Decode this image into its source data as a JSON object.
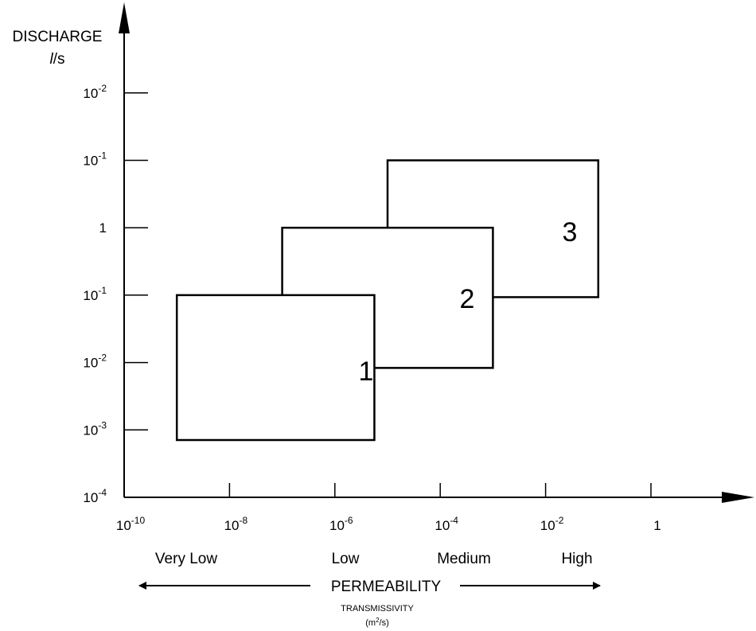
{
  "y_axis": {
    "title": "DISCHARGE",
    "unit_l": "l",
    "unit_rest": "/s",
    "ticks": [
      {
        "base": "10",
        "exp": "-4"
      },
      {
        "base": "10",
        "exp": "-3"
      },
      {
        "base": "10",
        "exp": "-2"
      },
      {
        "base": "10",
        "exp": "-1"
      },
      {
        "base": "1",
        "exp": ""
      },
      {
        "base": "10",
        "exp": "-1"
      },
      {
        "base": "10",
        "exp": "-2"
      }
    ]
  },
  "x_axis": {
    "ticks": [
      {
        "base": "10",
        "exp": "-10"
      },
      {
        "base": "10",
        "exp": "-8"
      },
      {
        "base": "10",
        "exp": "-6"
      },
      {
        "base": "10",
        "exp": "-4"
      },
      {
        "base": "10",
        "exp": "-2"
      },
      {
        "base": "1",
        "exp": ""
      }
    ],
    "permeability_classes": [
      "Very Low",
      "Low",
      "Medium",
      "High"
    ],
    "title": "PERMEABILITY",
    "subtitle": "TRANSMISSIVITY",
    "subtitle_unit_base": "m",
    "subtitle_unit_exp": "2",
    "subtitle_unit_rest": "/s"
  },
  "zones": [
    {
      "label": "1",
      "x_from": -9.0,
      "x_to": -5.25,
      "y_from": -3.15,
      "y_to": -1.0
    },
    {
      "label": "2",
      "x_from": -7.0,
      "x_to": -3.0,
      "y_from": -2.08,
      "y_to": 0.0
    },
    {
      "label": "3",
      "x_from": -5.0,
      "x_to": -1.0,
      "y_from": -1.03,
      "y_to": 1.0
    }
  ]
}
